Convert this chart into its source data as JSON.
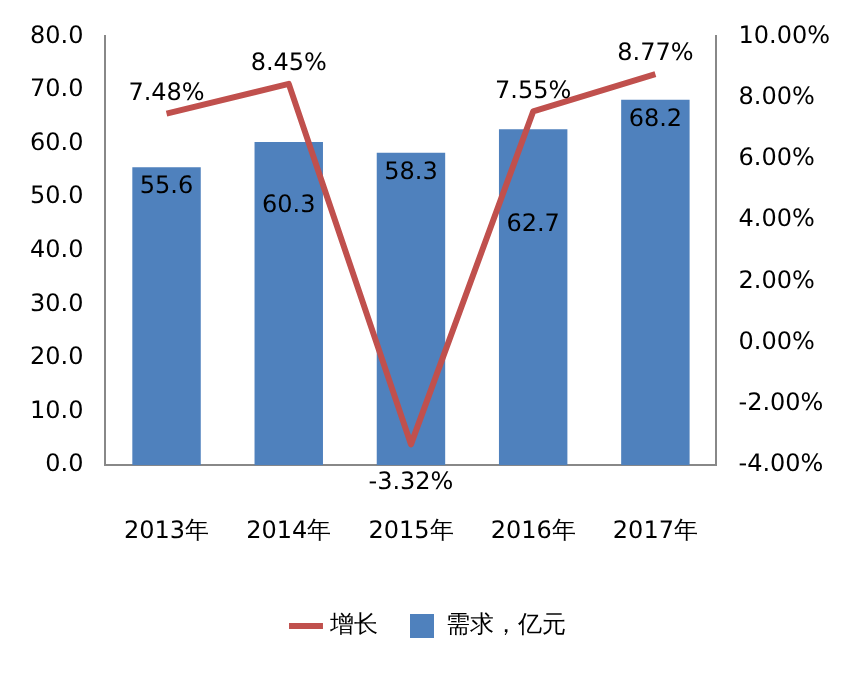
{
  "chart_data": {
    "type": "bar",
    "categories": [
      "2013年",
      "2014年",
      "2015年",
      "2016年",
      "2017年"
    ],
    "series": [
      {
        "name": "需求，亿元",
        "color": "#4f81bd",
        "values": [
          55.6,
          60.3,
          58.3,
          62.7,
          68.2
        ],
        "value_labels": [
          "55.6",
          "60.3",
          "58.3",
          "62.7",
          "68.2"
        ]
      },
      {
        "name": "增长",
        "type": "line",
        "axis": "y2",
        "color": "#c0504d",
        "values": [
          7.48,
          8.45,
          -3.32,
          7.55,
          8.77
        ],
        "value_labels": [
          "7.48%",
          "8.45%",
          "-3.32%",
          "7.55%",
          "8.77%"
        ]
      }
    ],
    "ylim": [
      0,
      80
    ],
    "yticks": [
      {
        "value": 0,
        "label": "0.0"
      },
      {
        "value": 10,
        "label": "10.0"
      },
      {
        "value": 20,
        "label": "20.0"
      },
      {
        "value": 30,
        "label": "30.0"
      },
      {
        "value": 40,
        "label": "40.0"
      },
      {
        "value": 50,
        "label": "50.0"
      },
      {
        "value": 60,
        "label": "60.0"
      },
      {
        "value": 70,
        "label": "70.0"
      },
      {
        "value": 80,
        "label": "80.0"
      }
    ],
    "y2lim": [
      -4,
      10
    ],
    "y2ticks": [
      {
        "value": -4,
        "label": "-4.00%"
      },
      {
        "value": -2,
        "label": "-2.00%"
      },
      {
        "value": 0,
        "label": "0.00%"
      },
      {
        "value": 2,
        "label": "2.00%"
      },
      {
        "value": 4,
        "label": "4.00%"
      },
      {
        "value": 6,
        "label": "6.00%"
      },
      {
        "value": 8,
        "label": "8.00%"
      },
      {
        "value": 10,
        "label": "10.00%"
      }
    ],
    "grid": false,
    "legend": "bottom"
  }
}
